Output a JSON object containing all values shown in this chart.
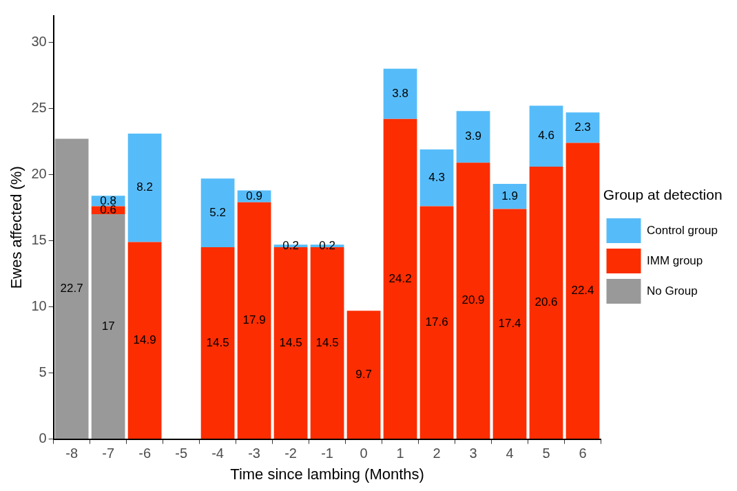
{
  "chart_data": {
    "type": "bar",
    "xlabel": "Time since lambing (Months)",
    "ylabel": "Ewes affected (%)",
    "legend_title": "Group at detection",
    "categories": [
      "-8",
      "-7",
      "-6",
      "-5",
      "-4",
      "-3",
      "-2",
      "-1",
      "0",
      "1",
      "2",
      "3",
      "4",
      "5",
      "6"
    ],
    "stacked": true,
    "series": [
      {
        "name": "No Group",
        "color": "#999999",
        "values": [
          22.7,
          17,
          null,
          null,
          null,
          null,
          null,
          null,
          null,
          null,
          null,
          null,
          null,
          null,
          null
        ]
      },
      {
        "name": "IMM group",
        "color": "#fc2d00",
        "values": [
          null,
          0.6,
          14.9,
          null,
          14.5,
          17.9,
          14.5,
          14.5,
          9.7,
          24.2,
          17.6,
          20.9,
          17.4,
          20.6,
          22.4
        ]
      },
      {
        "name": "Control group",
        "color": "#56bcf9",
        "values": [
          null,
          0.8,
          8.2,
          null,
          5.2,
          0.9,
          0.2,
          0.2,
          null,
          3.8,
          4.3,
          3.9,
          1.9,
          4.6,
          2.3
        ]
      }
    ],
    "ylim": [
      0,
      32
    ],
    "yticks": [
      0,
      5,
      10,
      15,
      20,
      25,
      30
    ],
    "grid": false,
    "legend": "right",
    "data_labels": true
  }
}
